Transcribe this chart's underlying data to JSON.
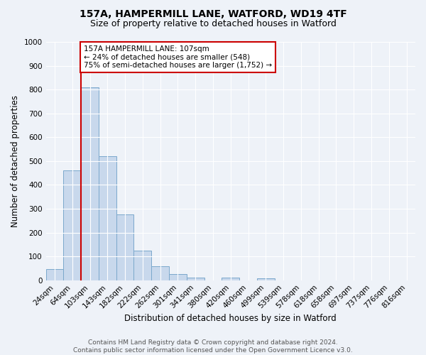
{
  "title": "157A, HAMPERMILL LANE, WATFORD, WD19 4TF",
  "subtitle": "Size of property relative to detached houses in Watford",
  "xlabel": "Distribution of detached houses by size in Watford",
  "ylabel": "Number of detached properties",
  "bar_categories": [
    "24sqm",
    "64sqm",
    "103sqm",
    "143sqm",
    "182sqm",
    "222sqm",
    "262sqm",
    "301sqm",
    "341sqm",
    "380sqm",
    "420sqm",
    "460sqm",
    "499sqm",
    "539sqm",
    "578sqm",
    "618sqm",
    "658sqm",
    "697sqm",
    "737sqm",
    "776sqm",
    "816sqm"
  ],
  "bar_values": [
    46,
    460,
    808,
    520,
    275,
    125,
    60,
    25,
    12,
    0,
    12,
    0,
    8,
    0,
    0,
    0,
    0,
    0,
    0,
    0,
    0
  ],
  "bar_color": "#c8d8ec",
  "bar_edge_color": "#7ba8cc",
  "vline_color": "#cc0000",
  "vline_index": 2,
  "ylim": [
    0,
    1000
  ],
  "yticks": [
    0,
    100,
    200,
    300,
    400,
    500,
    600,
    700,
    800,
    900,
    1000
  ],
  "annotation_text": "157A HAMPERMILL LANE: 107sqm\n← 24% of detached houses are smaller (548)\n75% of semi-detached houses are larger (1,752) →",
  "annotation_box_facecolor": "#ffffff",
  "annotation_box_edgecolor": "#cc0000",
  "footer_line1": "Contains HM Land Registry data © Crown copyright and database right 2024.",
  "footer_line2": "Contains public sector information licensed under the Open Government Licence v3.0.",
  "background_color": "#eef2f8",
  "grid_color": "#ffffff",
  "title_fontsize": 10,
  "subtitle_fontsize": 9,
  "axis_label_fontsize": 8.5,
  "tick_fontsize": 7.5,
  "annotation_fontsize": 7.5,
  "footer_fontsize": 6.5
}
